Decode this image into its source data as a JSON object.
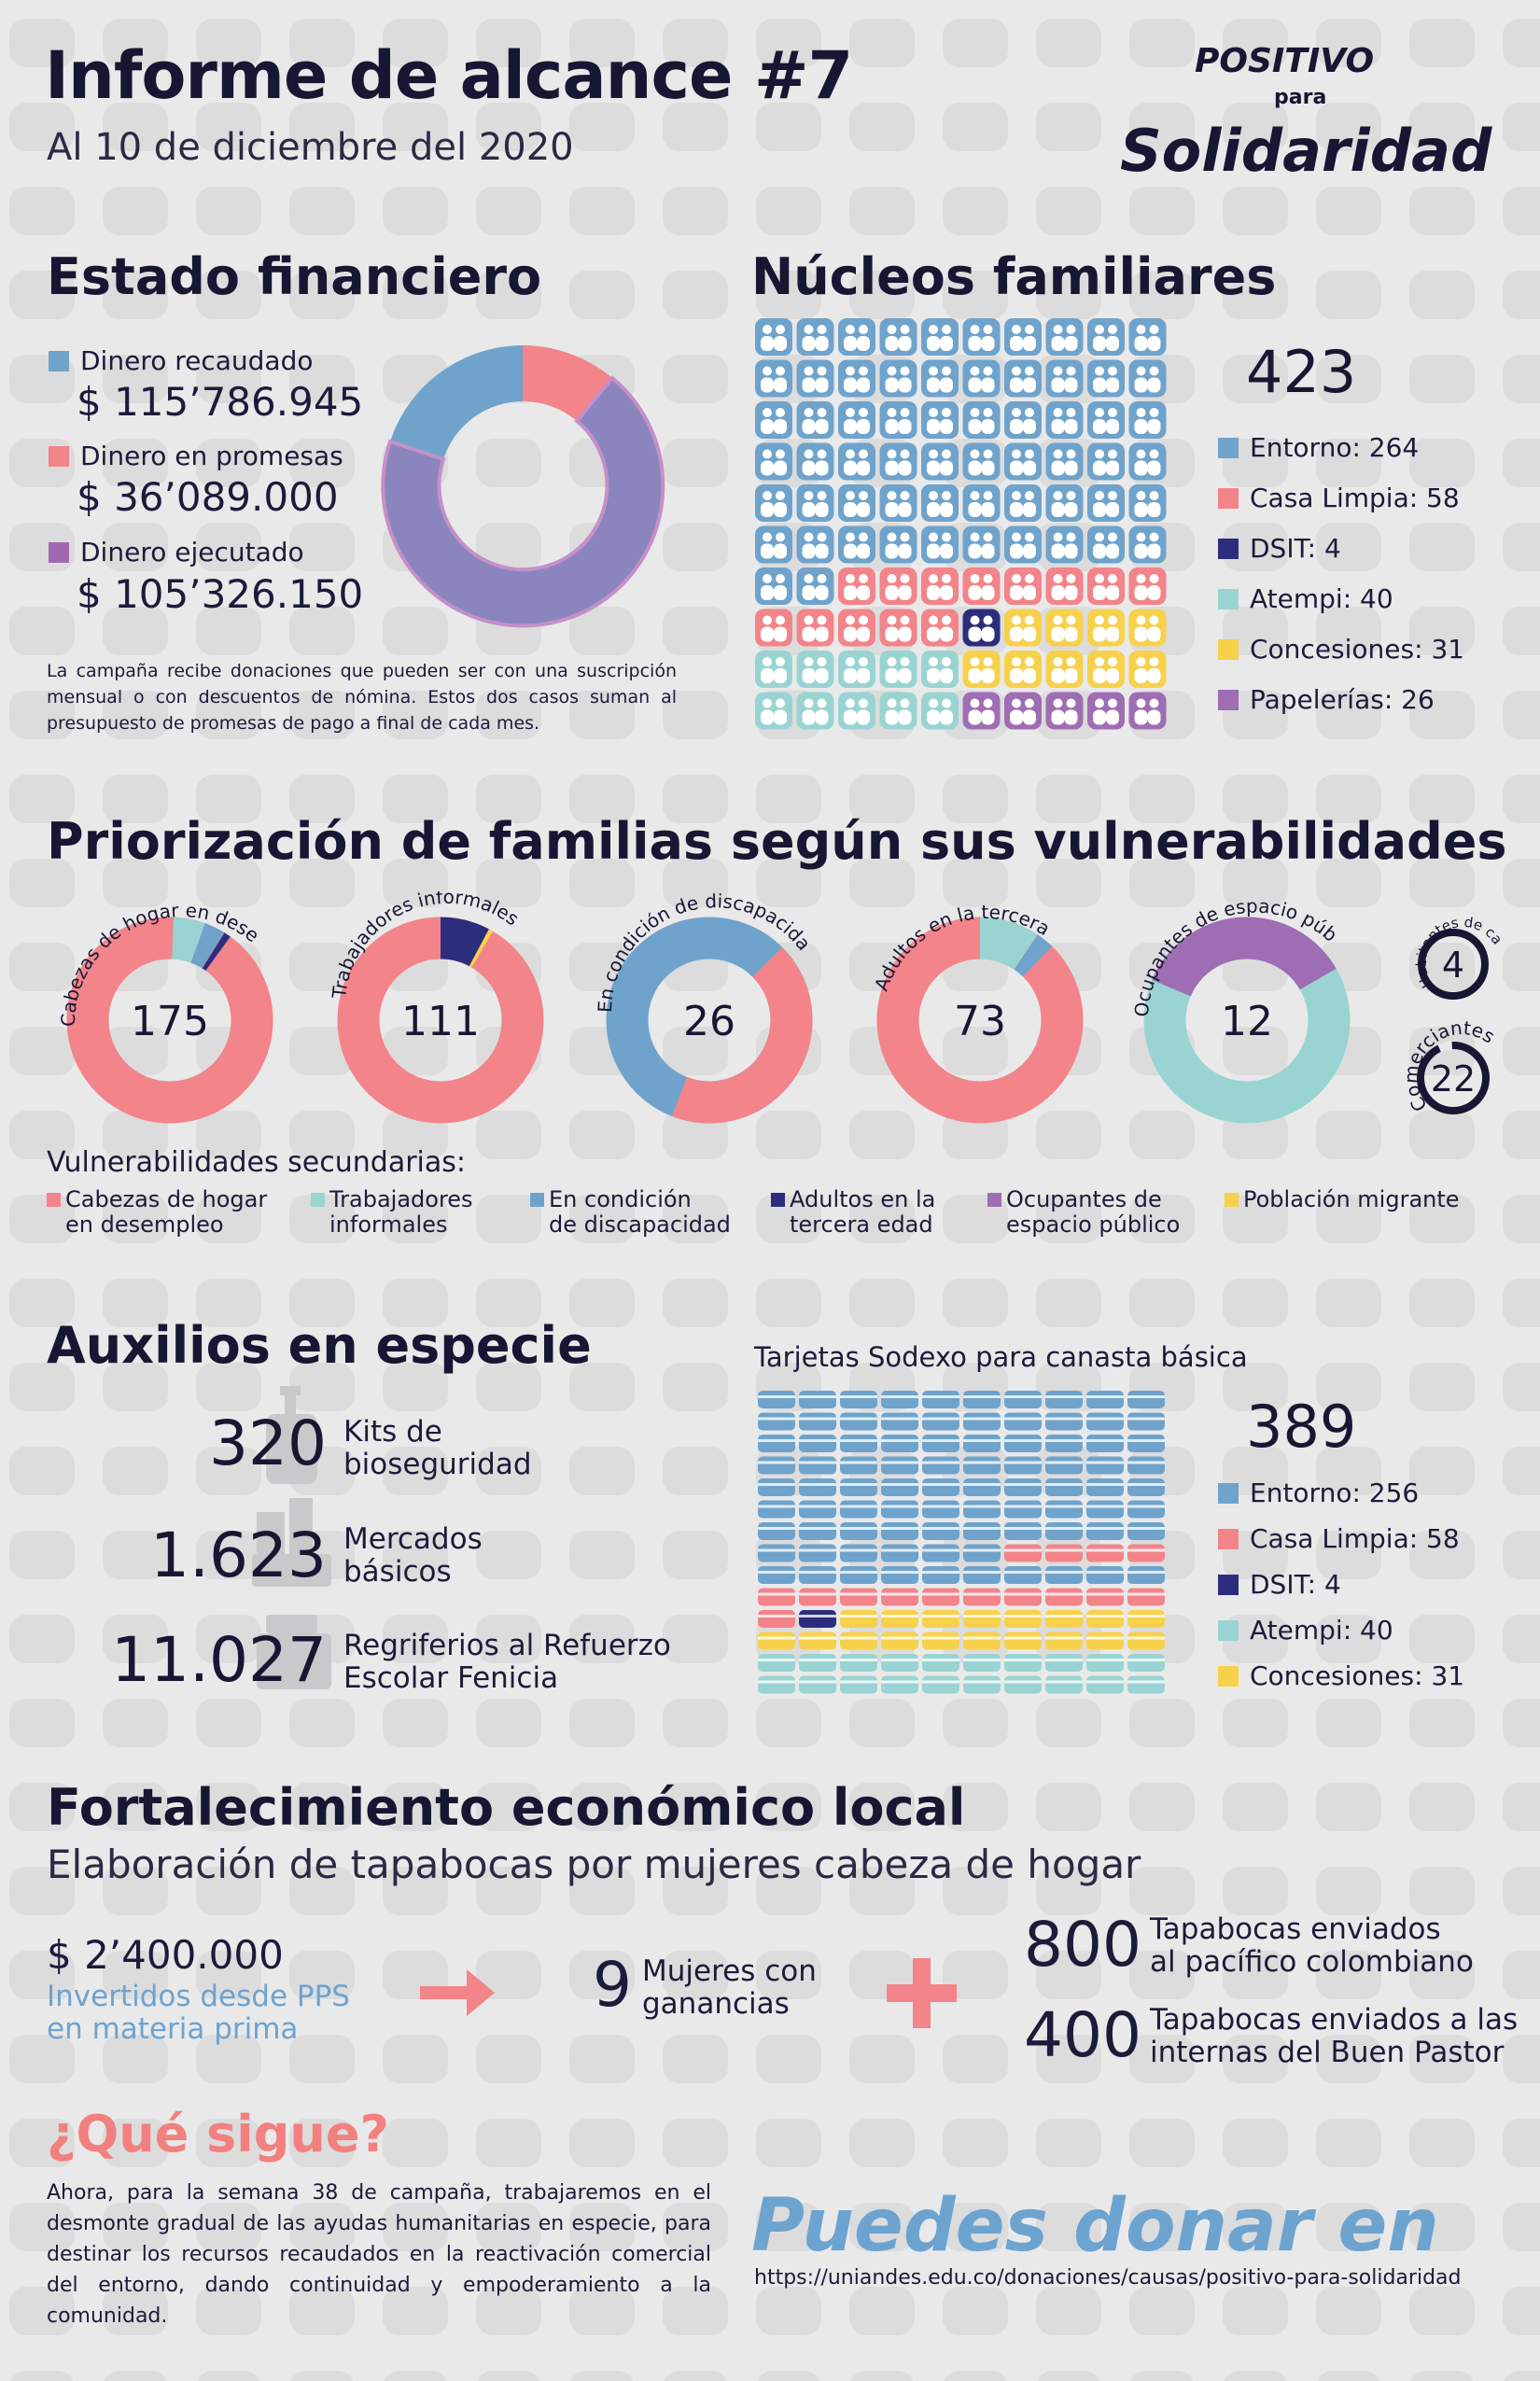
{
  "header": {
    "title": "Informe de alcance #7",
    "subtitle": "Al 10 de diciembre del 2020",
    "logo": {
      "line1": "Positivo",
      "line2": "para",
      "line3": "Solidaridad"
    }
  },
  "colors": {
    "blue": "#6fa3cb",
    "pink": "#f2848a",
    "navy": "#2d2d7e",
    "teal": "#9ad4d2",
    "yellow": "#f7d14c",
    "purple": "#9f6db3",
    "lavender": "#8b85bd",
    "dark": "#171733"
  },
  "financial": {
    "title": "Estado financiero",
    "items": [
      {
        "label": "Dinero recaudado",
        "value": "$ 115’786.945",
        "color": "#6fa3cb"
      },
      {
        "label": "Dinero en promesas",
        "value": "$ 36’089.000",
        "color": "#f2848a"
      },
      {
        "label": "Dinero ejecutado",
        "value": "$ 105’326.150",
        "color": "#a068b0"
      }
    ],
    "note": "La campaña recibe donaciones que pueden ser con una suscripción mensual o con descuentos de nómina. Estos dos casos suman al presupuesto de promesas de pago a final de cada mes."
  },
  "families": {
    "title": "Núcleos familiares",
    "total": "423",
    "legend": [
      {
        "label": "Entorno: 264",
        "color": "#6fa3cb"
      },
      {
        "label": "Casa Limpia: 58",
        "color": "#f2848a"
      },
      {
        "label": "DSIT: 4",
        "color": "#2d2d7e"
      },
      {
        "label": "Atempi: 40",
        "color": "#9ad4d2"
      },
      {
        "label": "Concesiones: 31",
        "color": "#f7d14c"
      },
      {
        "label": "Papelerías: 26",
        "color": "#9f6db3"
      }
    ]
  },
  "prioritization": {
    "title": "Priorización de familias según sus vulnerabilidades",
    "rings": [
      {
        "label": "Cabezas de hogar en desempleo",
        "value": "175"
      },
      {
        "label": "Trabajadores informales",
        "value": "111"
      },
      {
        "label": "En condición de discapacidad",
        "value": "26"
      },
      {
        "label": "Adultos en la tercera edad",
        "value": "73"
      },
      {
        "label": "Ocupantes de espacio público",
        "value": "12"
      }
    ],
    "small_rings": [
      {
        "label": "Habitantes de calle",
        "value": "4"
      },
      {
        "label": "Comerciantes",
        "value": "22"
      }
    ],
    "secondary_title": "Vulnerabilidades secundarias:",
    "secondary": [
      {
        "label": "Cabezas de hogar\nen desempleo",
        "color": "#f2848a"
      },
      {
        "label": "Trabajadores\ninformales",
        "color": "#9ad4d2"
      },
      {
        "label": "En condición\nde discapacidad",
        "color": "#6fa3cb"
      },
      {
        "label": "Adultos en la\ntercera edad",
        "color": "#2d2d7e"
      },
      {
        "label": "Ocupantes de\nespacio público",
        "color": "#9f6db3"
      },
      {
        "label": "Población migrante",
        "color": "#f7d14c"
      }
    ]
  },
  "aid": {
    "title": "Auxilios en especie",
    "items": [
      {
        "value": "320",
        "label": "Kits de\nbioseguridad",
        "icon": "soap-bottle-icon"
      },
      {
        "value": "1.623",
        "label": "Mercados\nbásicos",
        "icon": "groceries-icon"
      },
      {
        "value": "11.027",
        "label": "Regriferios al Refuerzo\nEscolar Fenicia",
        "icon": "food-container-icon"
      }
    ],
    "cards_title": "Tarjetas Sodexo para canasta básica",
    "cards_total": "389",
    "cards_legend": [
      {
        "label": "Entorno: 256",
        "color": "#6fa3cb"
      },
      {
        "label": "Casa Limpia: 58",
        "color": "#f2848a"
      },
      {
        "label": "DSIT: 4",
        "color": "#2d2d7e"
      },
      {
        "label": "Atempi: 40",
        "color": "#9ad4d2"
      },
      {
        "label": "Concesiones: 31",
        "color": "#f7d14c"
      }
    ]
  },
  "local": {
    "title": "Fortalecimiento económico local",
    "subtitle": "Elaboración de tapabocas por mujeres cabeza de hogar",
    "invest_value": "$ 2’400.000",
    "invest_label": "Invertidos desde PPS\nen materia prima",
    "women_value": "9",
    "women_label": "Mujeres con\nganancias",
    "masks": [
      {
        "value": "800",
        "label": "Tapabocas enviados\nal pacífico colombiano"
      },
      {
        "value": "400",
        "label": "Tapabocas enviados a las\ninternas del Buen Pastor"
      }
    ]
  },
  "next": {
    "title": "¿Qué sigue?",
    "text": "Ahora, para la semana 38 de campaña, trabajaremos en el desmonte gradual de las ayudas humanitarias en especie, para destinar los recursos recaudados en la reactivación comercial del entorno, dando continuidad y empoderamiento a la comunidad."
  },
  "donate": {
    "title": "Puedes donar en",
    "url": "https://uniandes.edu.co/donaciones/causas/positivo-para-solidaridad"
  }
}
